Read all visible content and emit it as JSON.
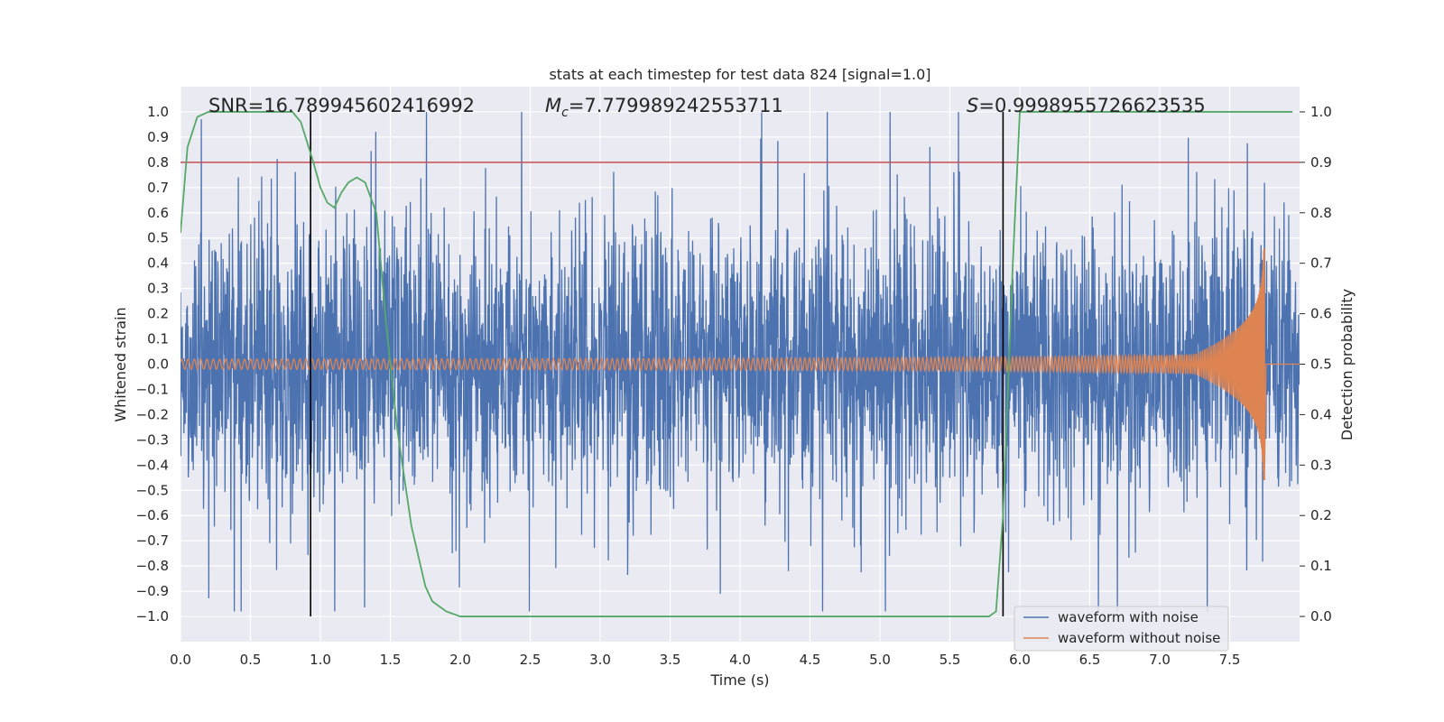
{
  "chart_data": {
    "type": "line",
    "title": "stats at each timestep for test data 824 [signal=1.0]",
    "xlabel": "Time (s)",
    "ylabel": "Whitened strain",
    "y2label": "Detection probability",
    "xlim": [
      0.0,
      8.0
    ],
    "ylim": [
      -1.1,
      1.1
    ],
    "y2lim": [
      -0.05,
      1.05
    ],
    "x_ticks": [
      0.0,
      0.5,
      1.0,
      1.5,
      2.0,
      2.5,
      3.0,
      3.5,
      4.0,
      4.5,
      5.0,
      5.5,
      6.0,
      6.5,
      7.0,
      7.5
    ],
    "x_tick_labels": [
      "0.0",
      "0.5",
      "1.0",
      "1.5",
      "2.0",
      "2.5",
      "3.0",
      "3.5",
      "4.0",
      "4.5",
      "5.0",
      "5.5",
      "6.0",
      "6.5",
      "7.0",
      "7.5"
    ],
    "y_ticks": [
      1.0,
      0.9,
      0.8,
      0.7,
      0.6,
      0.5,
      0.4,
      0.3,
      0.2,
      0.1,
      0.0,
      -0.1,
      -0.2,
      -0.3,
      -0.4,
      -0.5,
      -0.6,
      -0.7,
      -0.8,
      -0.9,
      -1.0
    ],
    "y_tick_labels": [
      "1.0",
      "0.9",
      "0.8",
      "0.7",
      "0.6",
      "0.5",
      "0.4",
      "0.3",
      "0.2",
      "0.1",
      "0.0",
      "−0.1",
      "−0.2",
      "−0.3",
      "−0.4",
      "−0.5",
      "−0.6",
      "−0.7",
      "−0.8",
      "−0.9",
      "−1.0"
    ],
    "y2_ticks": [
      1.0,
      0.9,
      0.8,
      0.7,
      0.6,
      0.5,
      0.4,
      0.3,
      0.2,
      0.1,
      0.0
    ],
    "y2_tick_labels": [
      "1.0",
      "0.9",
      "0.8",
      "0.7",
      "0.6",
      "0.5",
      "0.4",
      "0.3",
      "0.2",
      "0.1",
      "0.0"
    ],
    "annotations": {
      "snr": "SNR=16.789945602416992",
      "mc_symbol": "M",
      "mc_sub": "c",
      "mc_value": "=7.779989242553711",
      "s_symbol": "S",
      "s_value": "=0.9998955726623535"
    },
    "threshold": {
      "value": 0.9,
      "axis": "y2",
      "color": "#c44e52"
    },
    "vlines": [
      0.93,
      5.88
    ],
    "legend": {
      "placement": "lower-right",
      "entries": [
        {
          "label": "waveform with noise",
          "color": "#4c72b0"
        },
        {
          "label": "waveform without noise",
          "color": "#dd8452"
        }
      ]
    },
    "series": [
      {
        "name": "waveform with noise",
        "axis": "y",
        "color": "#4c72b0",
        "description": "noisy whitened strain, roughly within -0.98 to 1.0",
        "x_range": [
          0.0,
          8.0
        ],
        "typical_amplitude": 0.45,
        "peak_amplitude": 1.0
      },
      {
        "name": "waveform without noise",
        "axis": "y",
        "color": "#dd8452",
        "description": "chirp signal growing in amplitude until merger near 7.75 s",
        "x_range": [
          0.0,
          8.0
        ],
        "start_amplitude": 0.02,
        "peak_amplitude": 0.46,
        "merger_time": 7.75
      },
      {
        "name": "detection probability",
        "axis": "y2",
        "color": "#55a868",
        "x": [
          0.0,
          0.05,
          0.12,
          0.2,
          0.4,
          0.6,
          0.8,
          0.86,
          0.95,
          1.0,
          1.05,
          1.1,
          1.15,
          1.2,
          1.26,
          1.32,
          1.4,
          1.47,
          1.55,
          1.65,
          1.75,
          1.8,
          1.9,
          2.0,
          3.0,
          4.0,
          5.0,
          5.7,
          5.78,
          5.83,
          5.88,
          5.95,
          6.0,
          7.95
        ],
        "y": [
          0.76,
          0.93,
          0.99,
          1.0,
          1.0,
          1.0,
          1.0,
          0.98,
          0.9,
          0.85,
          0.82,
          0.81,
          0.84,
          0.86,
          0.87,
          0.86,
          0.8,
          0.58,
          0.37,
          0.18,
          0.06,
          0.03,
          0.01,
          0.0,
          0.0,
          0.0,
          0.0,
          0.0,
          0.0,
          0.01,
          0.2,
          0.7,
          1.0,
          1.0
        ]
      }
    ]
  }
}
